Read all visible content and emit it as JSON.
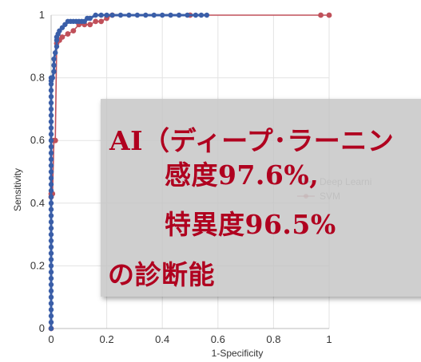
{
  "chart_data": {
    "type": "line",
    "xlabel": "1-Specificity",
    "ylabel": "Sensitivity",
    "xlim": [
      0,
      1
    ],
    "ylim": [
      0,
      1
    ],
    "xticks": [
      "0",
      "0.2",
      "0.4",
      "0.6",
      "0.8",
      "1"
    ],
    "yticks": [
      "0",
      "0.2",
      "0.4",
      "0.6",
      "0.8",
      "1"
    ],
    "grid": true,
    "legend": {
      "position": "right",
      "entries": [
        "Deep Learni",
        "SVM"
      ]
    },
    "series": [
      {
        "name": "Deep Learni",
        "color": "#3a5ea8",
        "marker": "circle",
        "x": [
          0,
          0,
          0,
          0,
          0,
          0,
          0,
          0,
          0,
          0,
          0,
          0,
          0,
          0,
          0,
          0,
          0,
          0,
          0,
          0,
          0,
          0,
          0,
          0,
          0,
          0,
          0,
          0,
          0,
          0,
          0,
          0,
          0,
          0,
          0,
          0,
          0,
          0,
          0,
          0,
          0,
          0,
          0.005,
          0.01,
          0.01,
          0.01,
          0.015,
          0.02,
          0.02,
          0.02,
          0.025,
          0.03,
          0.04,
          0.05,
          0.06,
          0.07,
          0.08,
          0.09,
          0.1,
          0.11,
          0.12,
          0.13,
          0.14,
          0.16,
          0.18,
          0.2,
          0.22,
          0.25,
          0.28,
          0.31,
          0.34,
          0.37,
          0.4,
          0.43,
          0.46,
          0.49,
          0.52,
          0.54,
          0.56
        ],
        "y": [
          0,
          0.02,
          0.04,
          0.06,
          0.08,
          0.1,
          0.12,
          0.14,
          0.16,
          0.18,
          0.2,
          0.22,
          0.24,
          0.26,
          0.28,
          0.3,
          0.32,
          0.34,
          0.36,
          0.38,
          0.4,
          0.42,
          0.44,
          0.46,
          0.48,
          0.5,
          0.52,
          0.54,
          0.56,
          0.58,
          0.6,
          0.62,
          0.64,
          0.66,
          0.68,
          0.7,
          0.72,
          0.74,
          0.76,
          0.78,
          0.79,
          0.8,
          0.8,
          0.82,
          0.84,
          0.86,
          0.88,
          0.9,
          0.92,
          0.93,
          0.94,
          0.95,
          0.96,
          0.97,
          0.98,
          0.98,
          0.98,
          0.98,
          0.98,
          0.98,
          0.98,
          0.99,
          0.99,
          1,
          1,
          1,
          1,
          1,
          1,
          1,
          1,
          1,
          1,
          1,
          1,
          1,
          1,
          1,
          1
        ]
      },
      {
        "name": "SVM",
        "color": "#c0505a",
        "marker": "circle",
        "x": [
          0,
          0,
          0,
          0.005,
          0.01,
          0.015,
          0.02,
          0.03,
          0.04,
          0.06,
          0.08,
          0.1,
          0.12,
          0.14,
          0.16,
          0.18,
          0.2,
          0.22,
          0.5,
          0.97,
          1
        ],
        "y": [
          0,
          0.42,
          0.43,
          0.43,
          0.6,
          0.6,
          0.91,
          0.92,
          0.93,
          0.94,
          0.95,
          0.97,
          0.97,
          0.97,
          0.98,
          0.98,
          0.99,
          1,
          1,
          1,
          1
        ]
      }
    ]
  },
  "overlay": {
    "line1": "AI（ディープ･ラーニン",
    "line2": "感度97.6%,",
    "line3": "特異度96.5%",
    "line4": "の診断能"
  }
}
